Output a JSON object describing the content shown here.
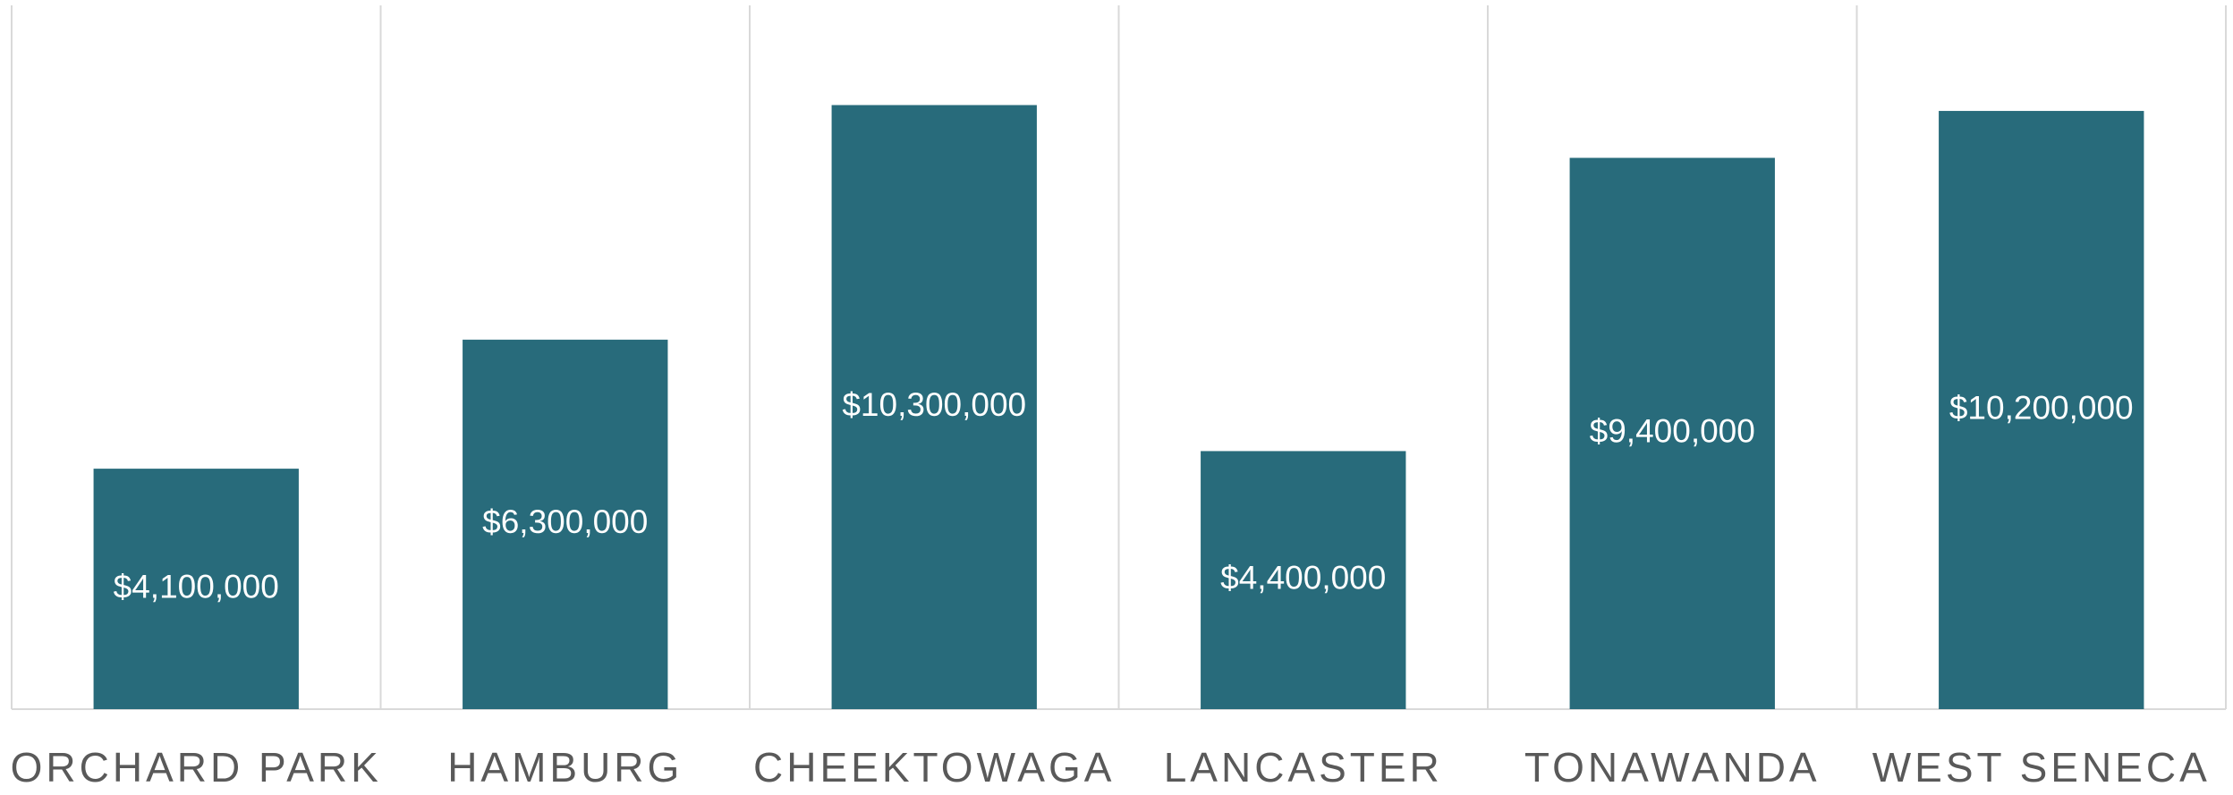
{
  "chart_data": {
    "type": "bar",
    "categories": [
      "ORCHARD PARK",
      "HAMBURG",
      "CHEEKTOWAGA",
      "LANCASTER",
      "TONAWANDA",
      "WEST SENECA"
    ],
    "values": [
      4100000,
      6300000,
      10300000,
      4400000,
      9400000,
      10200000
    ],
    "value_labels": [
      "$4,100,000",
      "$6,300,000",
      "$10,300,000",
      "$4,400,000",
      "$9,400,000",
      "$10,200,000"
    ],
    "color": "#286b7b",
    "ylim": [
      0,
      12000000
    ]
  }
}
